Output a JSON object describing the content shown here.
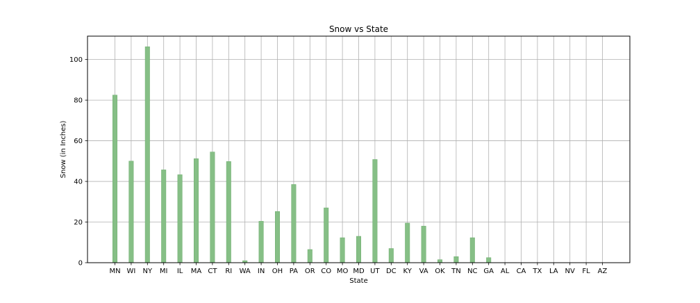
{
  "chart_data": {
    "type": "bar",
    "title": "Snow vs State",
    "xlabel": "State",
    "ylabel": "Snow (in Inches)",
    "categories": [
      "MN",
      "WI",
      "NY",
      "MI",
      "IL",
      "MA",
      "CT",
      "RI",
      "WA",
      "IN",
      "OH",
      "PA",
      "OR",
      "CO",
      "MO",
      "MD",
      "UT",
      "DC",
      "KY",
      "VA",
      "OK",
      "TN",
      "NC",
      "GA",
      "AL",
      "CA",
      "TX",
      "LA",
      "NV",
      "FL",
      "AZ"
    ],
    "values": [
      82.5,
      50.0,
      106.3,
      45.7,
      43.3,
      51.2,
      54.5,
      49.8,
      1.0,
      20.4,
      25.2,
      38.5,
      6.5,
      27.0,
      12.3,
      13.0,
      50.8,
      7.0,
      19.5,
      18.0,
      1.5,
      3.0,
      12.3,
      2.5,
      0,
      0,
      0,
      0,
      0,
      0,
      0
    ],
    "ylim": [
      0,
      111.5
    ],
    "yticks": [
      "0",
      "20",
      "40",
      "60",
      "80",
      "100"
    ],
    "grid": true,
    "bar_color": "#86bf86",
    "bar_edge_color": "#6fae6f",
    "grid_color": "#b0b0b0"
  }
}
